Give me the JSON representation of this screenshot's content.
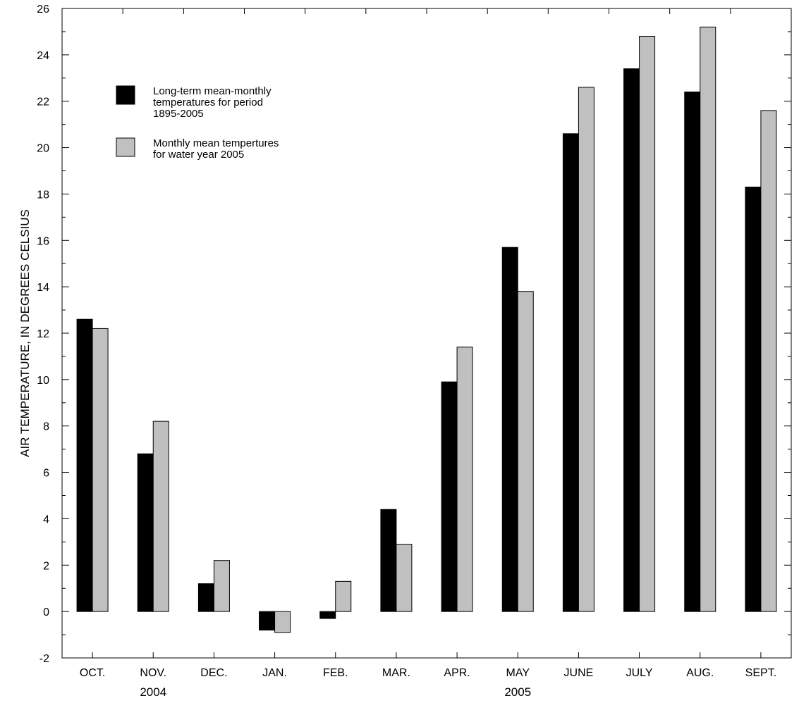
{
  "chart_data": {
    "type": "bar",
    "title": "",
    "xlabel": "",
    "ylabel": "AIR TEMPERATURE, IN DEGREES CELSIUS",
    "ylim": [
      -2,
      26
    ],
    "yticks": [
      -2,
      0,
      2,
      4,
      6,
      8,
      10,
      12,
      14,
      16,
      18,
      20,
      22,
      24,
      26
    ],
    "grid": false,
    "legend_position": "top-left",
    "categories": [
      "OCT.",
      "NOV.",
      "DEC.",
      "JAN.",
      "FEB.",
      "MAR.",
      "APR.",
      "MAY",
      "JUNE",
      "JULY",
      "AUG.",
      "SEPT."
    ],
    "year_labels": [
      {
        "label": "2004",
        "under_category": "NOV."
      },
      {
        "label": "2005",
        "under_category": "MAY"
      }
    ],
    "series": [
      {
        "name": "Long-term mean-monthly temperatures for period 1895-2005",
        "legend_lines": [
          "Long-term mean-monthly",
          "temperatures for period",
          "1895-2005"
        ],
        "color": "#000000",
        "values": [
          12.6,
          6.8,
          1.2,
          -0.8,
          -0.3,
          4.4,
          9.9,
          15.7,
          20.6,
          23.4,
          22.4,
          18.3
        ]
      },
      {
        "name": "Monthly mean tempertures for water year 2005",
        "legend_lines": [
          "Monthly mean tempertures",
          "for water year 2005"
        ],
        "color": "#c0c0c0",
        "values": [
          12.2,
          8.2,
          2.2,
          -0.9,
          1.3,
          2.9,
          11.4,
          13.8,
          22.6,
          24.8,
          25.2,
          21.6
        ]
      }
    ]
  }
}
